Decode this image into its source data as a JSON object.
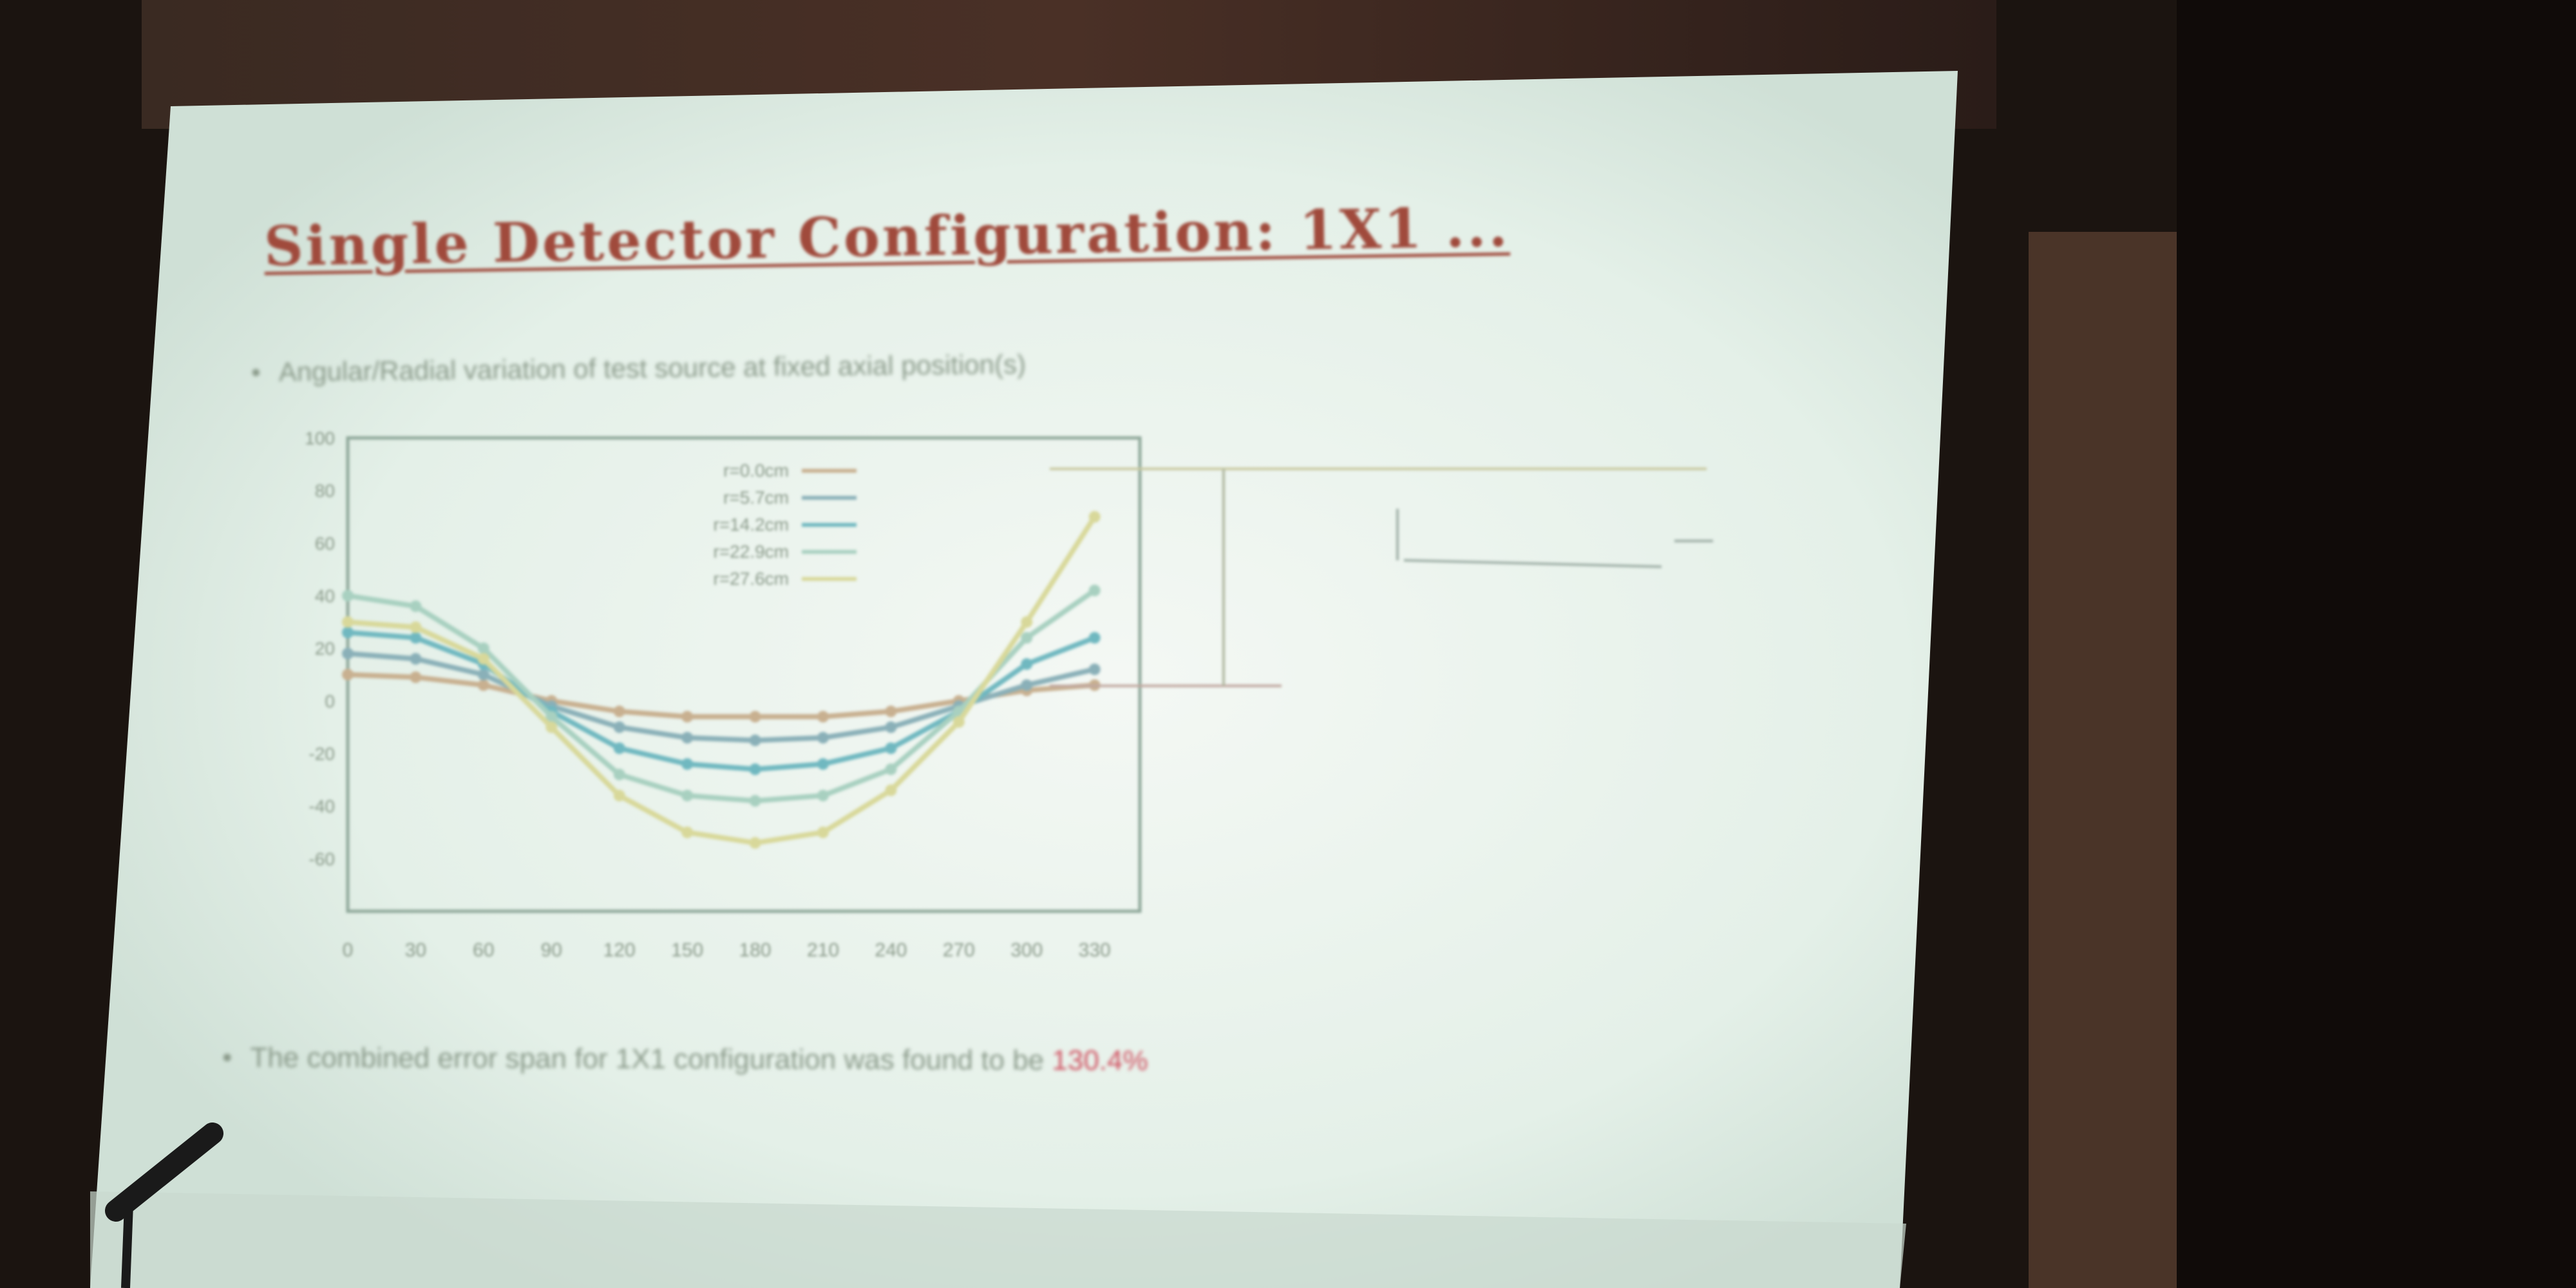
{
  "slide": {
    "title": "Single Detector Configuration: 1X1 ...",
    "bullet_1": "Angular/Radial variation of test source at fixed axial position(s)",
    "bullet_2_text": "The combined error span for 1X1 configuration was found to be ",
    "bullet_2_highlight": "130.4%"
  },
  "colors": {
    "title": "#a04a3c",
    "highlight": "#d05060",
    "slide_bg": "#e6f1e8",
    "room_bg": "#1b1410"
  },
  "chart_data": {
    "type": "line",
    "xlabel": "",
    "ylabel": "",
    "x": [
      0,
      30,
      60,
      90,
      120,
      150,
      180,
      210,
      240,
      270,
      300,
      330
    ],
    "x_tick_labels": [
      "0",
      "30",
      "60",
      "90",
      "120",
      "150",
      "180",
      "210",
      "240",
      "270",
      "300",
      "330"
    ],
    "xlim": [
      0,
      350
    ],
    "y_tick_labels": [
      "100",
      "80",
      "60",
      "40",
      "20",
      "0",
      "-20",
      "-40",
      "-60"
    ],
    "ylim": [
      -80,
      100
    ],
    "series": [
      {
        "name": "r=0.0cm",
        "color": "#c8b090",
        "values": [
          10,
          9,
          6,
          0,
          -4,
          -6,
          -6,
          -6,
          -4,
          0,
          4,
          6
        ]
      },
      {
        "name": "r=5.7cm",
        "color": "#8ab0b8",
        "values": [
          18,
          16,
          10,
          -2,
          -10,
          -14,
          -15,
          -14,
          -10,
          -2,
          6,
          12
        ]
      },
      {
        "name": "r=14.2cm",
        "color": "#70b8c0",
        "values": [
          26,
          24,
          14,
          -4,
          -18,
          -24,
          -26,
          -24,
          -18,
          -4,
          14,
          24
        ]
      },
      {
        "name": "r=22.9cm",
        "color": "#a8d0c0",
        "values": [
          40,
          36,
          20,
          -6,
          -28,
          -36,
          -38,
          -36,
          -26,
          -4,
          24,
          42
        ]
      },
      {
        "name": "r=27.6cm",
        "color": "#d8d89a",
        "values": [
          30,
          28,
          16,
          -10,
          -36,
          -50,
          -54,
          -50,
          -34,
          -8,
          30,
          70
        ]
      }
    ]
  }
}
